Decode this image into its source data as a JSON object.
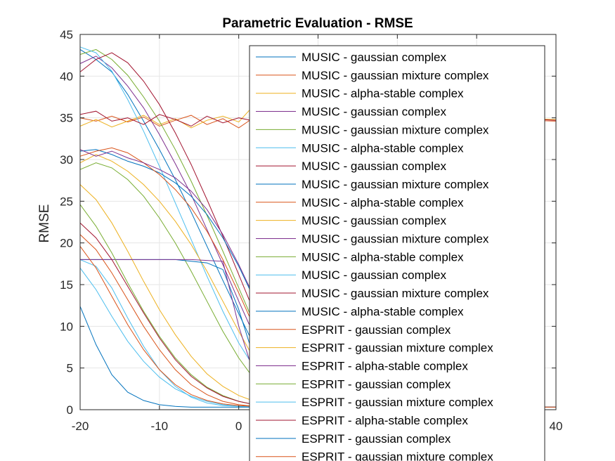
{
  "chart_data": {
    "type": "line",
    "title": "Parametric Evaluation - RMSE",
    "xlabel": "",
    "ylabel": "RMSE",
    "xlim": [
      -20,
      40
    ],
    "ylim": [
      0,
      45
    ],
    "xticks": [
      -20,
      -10,
      0,
      10,
      20,
      30,
      40
    ],
    "yticks": [
      0,
      5,
      10,
      15,
      20,
      25,
      30,
      35,
      40,
      45
    ],
    "visible_xtick_labels": [
      "-20",
      "-10",
      "0",
      "40"
    ],
    "grid": true,
    "legend_position": "top-right",
    "color_order": [
      "#0072BD",
      "#D95319",
      "#EDB120",
      "#7E2F8E",
      "#77AC30",
      "#4DBEEE",
      "#A2142F"
    ],
    "series": [
      {
        "name": "MUSIC - gaussian complex",
        "color": "#0072BD",
        "x": [
          -20,
          -18,
          -16,
          -14,
          -12,
          -10,
          -8,
          -6,
          -4,
          -2,
          0,
          2,
          4,
          6,
          8,
          10,
          20,
          30,
          40
        ],
        "values": [
          43.2,
          42.0,
          40.5,
          37.8,
          34.6,
          31.2,
          27.6,
          23.7,
          19.6,
          15.5,
          11.5,
          7.6,
          4.5,
          2.3,
          1.0,
          0.5,
          0.3,
          0.3,
          0.3
        ]
      },
      {
        "name": "MUSIC - gaussian mixture complex",
        "color": "#D95319",
        "x": [
          -20,
          -18,
          -16,
          -14,
          -12,
          -10,
          -8,
          -6,
          -4,
          -2,
          0,
          2,
          4,
          6,
          8,
          10,
          20,
          30,
          40
        ],
        "values": [
          35.0,
          34.6,
          35.2,
          34.5,
          35.1,
          34.0,
          34.7,
          35.3,
          34.2,
          34.9,
          33.8,
          35.1,
          34.6,
          35.0,
          34.4,
          35.2,
          34.8,
          34.9,
          34.6
        ]
      },
      {
        "name": "MUSIC - alpha-stable complex",
        "color": "#EDB120",
        "x": [
          -20,
          -18,
          -16,
          -14,
          -12,
          -10,
          -8,
          -6,
          -4,
          -2,
          0,
          2,
          4,
          6,
          8,
          10,
          20,
          30,
          40
        ],
        "values": [
          34.0,
          34.8,
          33.9,
          34.6,
          35.3,
          34.2,
          34.9,
          33.8,
          34.7,
          35.2,
          34.5,
          36.6,
          35.0,
          34.3,
          35.1,
          34.6,
          34.9,
          35.0,
          34.8
        ]
      },
      {
        "name": "MUSIC - gaussian complex",
        "color": "#7E2F8E",
        "x": [
          -20,
          -18,
          -16,
          -14,
          -12,
          -10,
          -8,
          -6,
          -4,
          -2,
          0,
          2,
          4,
          6,
          8,
          10,
          20,
          30,
          40
        ],
        "values": [
          41.5,
          42.4,
          41.0,
          38.8,
          36.2,
          33.0,
          29.5,
          25.8,
          21.6,
          17.4,
          13.0,
          8.8,
          5.2,
          2.6,
          1.2,
          0.6,
          0.3,
          0.3,
          0.3
        ]
      },
      {
        "name": "MUSIC - gaussian mixture complex",
        "color": "#77AC30",
        "x": [
          -20,
          -18,
          -16,
          -14,
          -12,
          -10,
          -8,
          -6,
          -4,
          -2,
          0,
          2,
          4,
          6,
          8,
          10,
          20,
          30,
          40
        ],
        "values": [
          42.6,
          43.2,
          42.0,
          40.1,
          37.5,
          34.6,
          31.2,
          27.4,
          23.3,
          19.0,
          14.6,
          10.2,
          6.3,
          3.3,
          1.5,
          0.7,
          0.4,
          0.3,
          0.3
        ]
      },
      {
        "name": "MUSIC - alpha-stable complex",
        "color": "#4DBEEE",
        "x": [
          -20,
          -18,
          -16,
          -14,
          -12,
          -10,
          -8,
          -6,
          -4,
          -2,
          0,
          2,
          4,
          6,
          8,
          10,
          20,
          30,
          40
        ],
        "values": [
          43.5,
          42.8,
          40.6,
          37.2,
          33.4,
          29.2,
          24.8,
          20.4,
          16.0,
          11.8,
          8.0,
          5.0,
          2.8,
          1.4,
          0.7,
          0.4,
          0.3,
          0.3,
          0.3
        ]
      },
      {
        "name": "MUSIC - gaussian complex",
        "color": "#A2142F",
        "x": [
          -20,
          -18,
          -16,
          -14,
          -12,
          -10,
          -8,
          -6,
          -4,
          -2,
          0,
          2,
          4,
          6,
          8,
          10,
          20,
          30,
          40
        ],
        "values": [
          40.5,
          42.0,
          42.8,
          41.6,
          39.4,
          36.6,
          33.2,
          29.4,
          25.2,
          20.8,
          16.2,
          11.6,
          7.4,
          4.0,
          1.8,
          0.8,
          0.4,
          0.3,
          0.3
        ]
      },
      {
        "name": "MUSIC - gaussian mixture complex",
        "color": "#0072BD",
        "x": [
          -20,
          -18,
          -16,
          -14,
          -12,
          -10,
          -8,
          -6,
          -4,
          -2,
          0,
          2,
          4,
          6,
          8,
          10,
          20,
          30,
          40
        ],
        "values": [
          31.0,
          31.2,
          30.6,
          29.8,
          29.2,
          28.4,
          27.2,
          25.6,
          23.4,
          20.6,
          17.2,
          13.2,
          9.0,
          5.3,
          2.6,
          1.1,
          0.4,
          0.3,
          0.3
        ]
      },
      {
        "name": "MUSIC - alpha-stable complex",
        "color": "#D95319",
        "x": [
          -20,
          -18,
          -16,
          -14,
          -12,
          -10,
          -8,
          -6,
          -4,
          -2,
          0,
          2,
          4,
          6,
          8,
          10,
          20,
          30,
          40
        ],
        "values": [
          30.4,
          31.0,
          31.4,
          30.8,
          29.6,
          28.2,
          26.4,
          24.2,
          21.4,
          18.0,
          14.0,
          9.8,
          6.0,
          3.2,
          1.4,
          0.6,
          0.3,
          0.3,
          0.3
        ]
      },
      {
        "name": "MUSIC - gaussian complex",
        "color": "#EDB120",
        "x": [
          -20,
          -18,
          -16,
          -14,
          -12,
          -10,
          -8,
          -6,
          -4,
          -2,
          0,
          2,
          4,
          6,
          8,
          10,
          20,
          30,
          40
        ],
        "values": [
          29.6,
          30.6,
          29.8,
          28.6,
          27.0,
          25.0,
          22.6,
          19.8,
          16.6,
          13.0,
          9.4,
          6.0,
          3.4,
          1.7,
          0.8,
          0.4,
          0.3,
          0.3,
          0.3
        ]
      },
      {
        "name": "MUSIC - gaussian mixture complex",
        "color": "#7E2F8E",
        "x": [
          -20,
          -18,
          -16,
          -14,
          -12,
          -10,
          -8,
          -6,
          -4,
          -2,
          0,
          2,
          4,
          6,
          8,
          10,
          20,
          30,
          40
        ],
        "values": [
          31.2,
          30.4,
          31.0,
          30.2,
          29.6,
          28.8,
          27.8,
          26.2,
          24.0,
          21.0,
          17.4,
          13.4,
          9.2,
          5.4,
          2.6,
          1.1,
          0.4,
          0.3,
          0.3
        ]
      },
      {
        "name": "MUSIC - alpha-stable complex",
        "color": "#77AC30",
        "x": [
          -20,
          -18,
          -16,
          -14,
          -12,
          -10,
          -8,
          -6,
          -4,
          -2,
          0,
          2,
          4,
          6,
          8,
          10,
          20,
          30,
          40
        ],
        "values": [
          28.8,
          29.6,
          29.0,
          27.6,
          25.6,
          23.0,
          20.0,
          16.6,
          13.0,
          9.4,
          6.2,
          3.6,
          1.9,
          0.9,
          0.5,
          0.3,
          0.3,
          0.3,
          0.3
        ]
      },
      {
        "name": "MUSIC - gaussian complex",
        "color": "#4DBEEE",
        "x": [
          -20,
          -18,
          -16,
          -14,
          -12,
          -10,
          -8,
          -6,
          -4,
          -2,
          0,
          2,
          4,
          6,
          8,
          10,
          20,
          30,
          40
        ],
        "values": [
          18.0,
          17.2,
          14.6,
          11.0,
          7.6,
          4.8,
          2.8,
          1.5,
          0.8,
          0.5,
          0.4,
          0.3,
          0.3,
          0.3,
          0.3,
          0.3,
          0.3,
          0.3,
          0.3
        ]
      },
      {
        "name": "MUSIC - gaussian mixture complex",
        "color": "#A2142F",
        "x": [
          -20,
          -18,
          -16,
          -14,
          -12,
          -10,
          -8,
          -6,
          -4,
          -2,
          0,
          2,
          4,
          6,
          8,
          10,
          20,
          30,
          40
        ],
        "values": [
          35.4,
          35.8,
          34.6,
          35.0,
          34.2,
          35.4,
          34.8,
          34.0,
          35.2,
          34.4,
          35.0,
          34.6,
          35.3,
          34.7,
          35.1,
          34.5,
          34.9,
          35.2,
          34.7
        ]
      },
      {
        "name": "MUSIC - alpha-stable complex",
        "color": "#0072BD",
        "x": [
          -20,
          -18,
          -16,
          -14,
          -12,
          -10,
          -8,
          -6,
          -4,
          -2,
          0,
          2,
          4,
          6,
          8,
          10,
          20,
          30,
          40
        ],
        "values": [
          18.0,
          18.0,
          18.0,
          18.0,
          18.0,
          18.0,
          18.0,
          17.8,
          17.6,
          16.8,
          12.0,
          6.0,
          2.5,
          1.0,
          0.5,
          0.3,
          0.3,
          0.3,
          0.3
        ]
      },
      {
        "name": "ESPRIT - gaussian complex",
        "color": "#D95319",
        "x": [
          -20,
          -18,
          -16,
          -14,
          -12,
          -10,
          -8,
          -6,
          -4,
          -2,
          0,
          2,
          4,
          6,
          8,
          10,
          20,
          30,
          40
        ],
        "values": [
          21.0,
          19.2,
          16.4,
          13.2,
          10.0,
          7.2,
          4.8,
          3.0,
          1.8,
          1.0,
          0.6,
          0.4,
          0.3,
          0.3,
          0.3,
          0.3,
          0.3,
          0.3,
          0.3
        ]
      },
      {
        "name": "ESPRIT - gaussian mixture complex",
        "color": "#EDB120",
        "x": [
          -20,
          -18,
          -16,
          -14,
          -12,
          -10,
          -8,
          -6,
          -4,
          -2,
          0,
          2,
          4,
          6,
          8,
          10,
          20,
          30,
          40
        ],
        "values": [
          27.0,
          25.2,
          22.4,
          19.0,
          15.4,
          12.0,
          9.0,
          6.4,
          4.3,
          2.8,
          1.7,
          1.0,
          0.6,
          0.4,
          0.3,
          0.3,
          0.3,
          0.3,
          0.3
        ]
      },
      {
        "name": "ESPRIT - alpha-stable complex",
        "color": "#7E2F8E",
        "x": [
          -20,
          -18,
          -16,
          -14,
          -12,
          -10,
          -8,
          -6,
          -4,
          -2,
          0,
          2,
          4,
          6,
          8,
          10,
          20,
          30,
          40
        ],
        "values": [
          18.0,
          18.0,
          18.0,
          18.0,
          18.0,
          18.0,
          18.0,
          18.0,
          17.9,
          17.8,
          10.0,
          4.0,
          1.6,
          0.7,
          0.4,
          0.3,
          0.3,
          0.3,
          0.3
        ]
      },
      {
        "name": "ESPRIT - gaussian complex",
        "color": "#77AC30",
        "x": [
          -20,
          -18,
          -16,
          -14,
          -12,
          -10,
          -8,
          -6,
          -4,
          -2,
          0,
          2,
          4,
          6,
          8,
          10,
          20,
          30,
          40
        ],
        "values": [
          24.6,
          22.0,
          18.8,
          15.2,
          11.8,
          8.8,
          6.2,
          4.2,
          2.7,
          1.7,
          1.0,
          0.6,
          0.4,
          0.3,
          0.3,
          0.3,
          0.3,
          0.3,
          0.3
        ]
      },
      {
        "name": "ESPRIT - gaussian mixture complex",
        "color": "#4DBEEE",
        "x": [
          -20,
          -18,
          -16,
          -14,
          -12,
          -10,
          -8,
          -6,
          -4,
          -2,
          0,
          2,
          4,
          6,
          8,
          10,
          20,
          30,
          40
        ],
        "values": [
          17.0,
          14.4,
          11.2,
          8.2,
          5.8,
          3.9,
          2.5,
          1.6,
          1.0,
          0.6,
          0.4,
          0.3,
          0.3,
          0.3,
          0.3,
          0.3,
          0.3,
          0.3,
          0.3
        ]
      },
      {
        "name": "ESPRIT - alpha-stable complex",
        "color": "#A2142F",
        "x": [
          -20,
          -18,
          -16,
          -14,
          -12,
          -10,
          -8,
          -6,
          -4,
          -2,
          0,
          2,
          4,
          6,
          8,
          10,
          20,
          30,
          40
        ],
        "values": [
          22.4,
          20.6,
          18.0,
          14.8,
          11.6,
          8.6,
          6.0,
          4.0,
          2.6,
          1.6,
          1.0,
          0.6,
          0.4,
          0.3,
          0.3,
          0.3,
          0.3,
          0.3,
          0.3
        ]
      },
      {
        "name": "ESPRIT - gaussian complex",
        "color": "#0072BD",
        "x": [
          -20,
          -18,
          -16,
          -14,
          -12,
          -10,
          -8,
          -6,
          -4,
          -2,
          0,
          2,
          4,
          6,
          8,
          10,
          20,
          30,
          40
        ],
        "values": [
          12.4,
          7.8,
          4.2,
          2.1,
          1.1,
          0.6,
          0.4,
          0.3,
          0.3,
          0.3,
          0.3,
          0.3,
          0.3,
          0.3,
          0.3,
          0.3,
          0.3,
          0.3,
          0.3
        ]
      },
      {
        "name": "ESPRIT - gaussian mixture complex",
        "color": "#D95319",
        "x": [
          -20,
          -18,
          -16,
          -14,
          -12,
          -10,
          -8,
          -6,
          -4,
          -2,
          0,
          2,
          4,
          6,
          8,
          10,
          20,
          30,
          40
        ],
        "values": [
          19.6,
          17.0,
          13.6,
          10.2,
          7.2,
          4.8,
          3.0,
          1.8,
          1.1,
          0.7,
          0.5,
          0.4,
          0.3,
          0.3,
          0.3,
          0.3,
          0.3,
          0.3,
          0.3
        ]
      }
    ]
  }
}
